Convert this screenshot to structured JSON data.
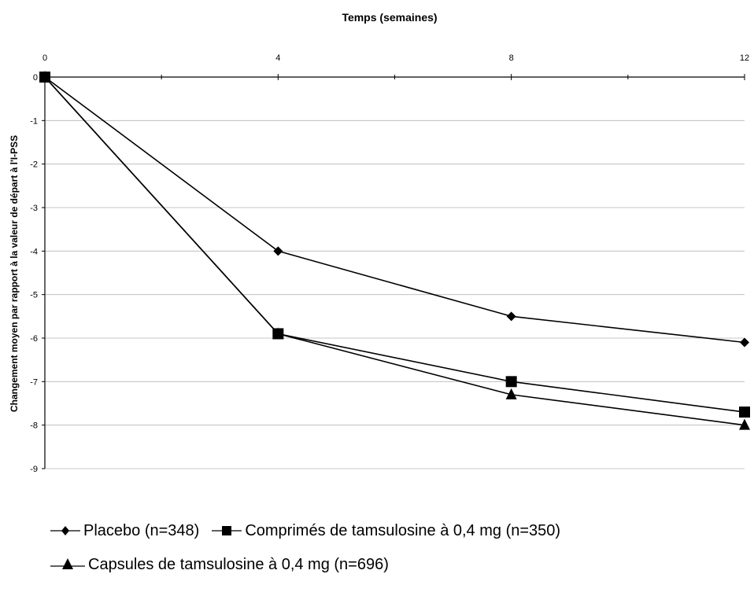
{
  "chart_data": {
    "type": "line",
    "xlabel": "Temps (semaines)",
    "ylabel": "Changement moyen par rapport à la valeur de départ à l'I-PSS",
    "x": [
      0,
      4,
      8,
      12
    ],
    "x_ticks": [
      "0",
      "4",
      "8",
      "12"
    ],
    "xlim": [
      0,
      12
    ],
    "x_axis_position": "top",
    "ylim": [
      -9,
      0
    ],
    "y_ticks": [
      "0",
      "-1",
      "-2",
      "-3",
      "-4",
      "-5",
      "-6",
      "-7",
      "-8",
      "-9"
    ],
    "grid": true,
    "legend_position": "bottom",
    "series": [
      {
        "name": "Placebo (n=348)",
        "marker": "diamond",
        "values": [
          0,
          -4.0,
          -5.5,
          -6.1
        ],
        "color": "#000000"
      },
      {
        "name": "Comprimés de tamsulosine à 0,4 mg (n=350)",
        "marker": "square",
        "values": [
          0,
          -5.9,
          -7.0,
          -7.7
        ],
        "color": "#000000"
      },
      {
        "name": "Capsules de tamsulosine à 0,4 mg (n=696)",
        "marker": "triangle",
        "values": [
          0,
          -5.9,
          -7.3,
          -8.0
        ],
        "color": "#000000"
      }
    ]
  }
}
